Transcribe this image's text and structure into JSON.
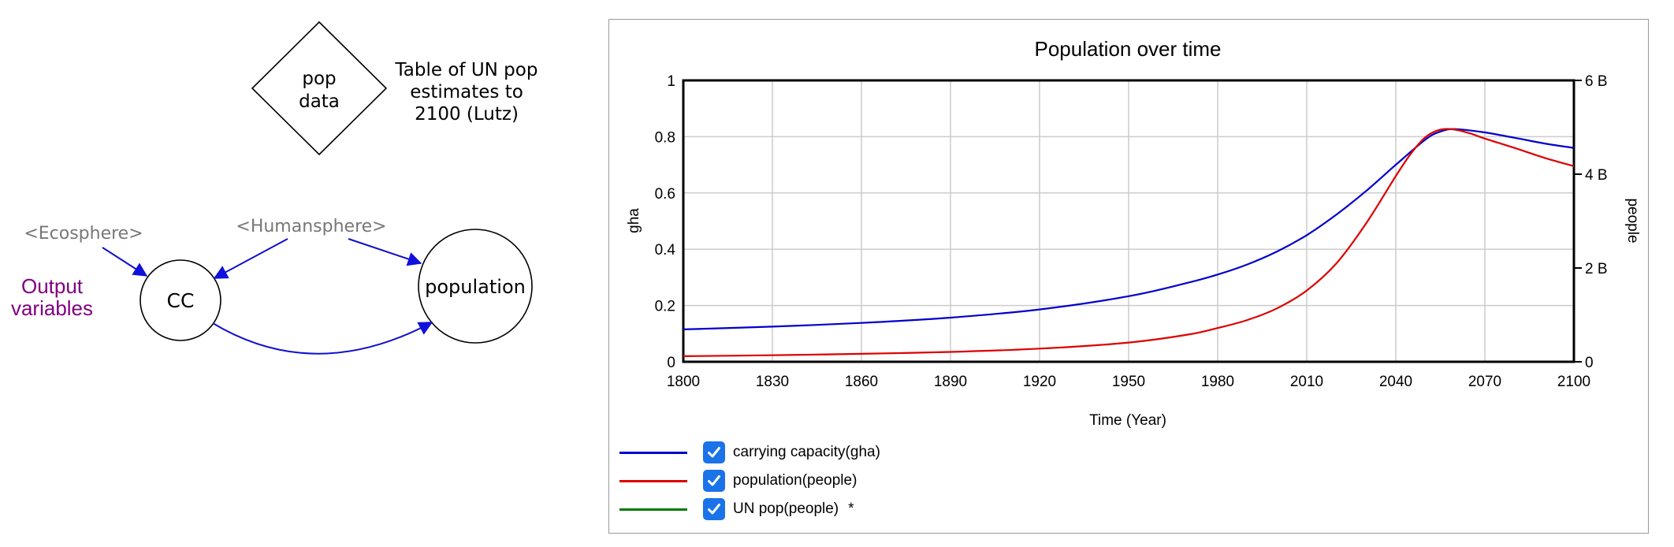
{
  "diagram": {
    "pop_data_label": [
      "pop",
      "data"
    ],
    "pop_data_note": [
      "Table of UN pop",
      "estimates to",
      "2100 (Lutz)"
    ],
    "ecosphere": "<Ecosphere>",
    "humansphere": "<Humansphere>",
    "output_variables": [
      "Output",
      "variables"
    ],
    "cc_label": "CC",
    "population_label": "population",
    "colors": {
      "link": "#1010cc",
      "shadow": "#777777",
      "output": "#800080"
    }
  },
  "chart_data": {
    "type": "line",
    "title": "Population over time",
    "xlabel": "Time (Year)",
    "ylabel_left": "gha",
    "ylabel_right": "people",
    "xlim": [
      1800,
      2100
    ],
    "xticks": [
      1800,
      1830,
      1860,
      1890,
      1920,
      1950,
      1980,
      2010,
      2040,
      2070,
      2100
    ],
    "ylim_left": [
      0,
      1
    ],
    "yticks_left": [
      "0",
      "0.2",
      "0.4",
      "0.6",
      "0.8",
      "1"
    ],
    "ylim_right": [
      0,
      6000000000
    ],
    "yticks_right": [
      "0",
      "2 B",
      "4 B",
      "6 B"
    ],
    "grid": true,
    "legend_placement": "bottom-left",
    "series": [
      {
        "name": "carrying capacity(gha)",
        "axis": "left",
        "color": "#0000cc",
        "checked": true,
        "x": [
          1800,
          1830,
          1860,
          1890,
          1920,
          1950,
          1970,
          1980,
          1990,
          2000,
          2010,
          2020,
          2030,
          2040,
          2050,
          2055,
          2060,
          2070,
          2080,
          2090,
          2100
        ],
        "y": [
          0.115,
          0.125,
          0.138,
          0.157,
          0.186,
          0.233,
          0.281,
          0.31,
          0.346,
          0.392,
          0.45,
          0.523,
          0.607,
          0.7,
          0.79,
          0.818,
          0.827,
          0.815,
          0.796,
          0.776,
          0.76
        ]
      },
      {
        "name": "population(people)",
        "axis": "right",
        "color": "#dd0000",
        "checked": true,
        "x": [
          1800,
          1830,
          1860,
          1890,
          1920,
          1950,
          1970,
          1980,
          1990,
          2000,
          2010,
          2020,
          2030,
          2040,
          2045,
          2050,
          2055,
          2060,
          2065,
          2070,
          2080,
          2090,
          2100
        ],
        "y": [
          120000000,
          140000000,
          170000000,
          210000000,
          280000000,
          410000000,
          580000000,
          720000000,
          890000000,
          1140000000,
          1520000000,
          2100000000,
          2950000000,
          3960000000,
          4430000000,
          4790000000,
          4950000000,
          4950000000,
          4870000000,
          4760000000,
          4560000000,
          4350000000,
          4170000000
        ]
      },
      {
        "name": "UN pop(people)",
        "axis": "right",
        "color": "#007a00",
        "checked": true,
        "marker": "*",
        "x": [],
        "y": []
      }
    ]
  }
}
